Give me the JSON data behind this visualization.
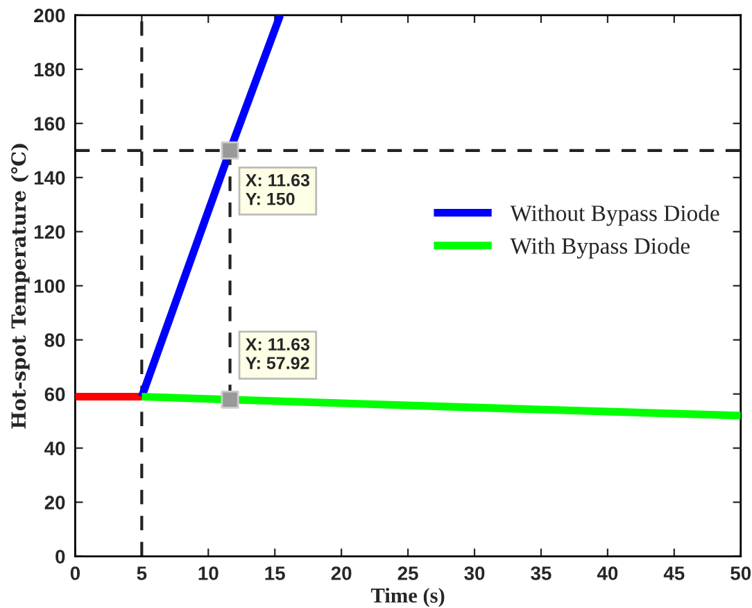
{
  "chart_data": {
    "type": "line",
    "xlabel": "Time (s)",
    "ylabel": "Hot-spot Temperature (℃)",
    "xlim": [
      0,
      50
    ],
    "ylim": [
      0,
      200
    ],
    "xticks": [
      0,
      5,
      10,
      15,
      20,
      25,
      30,
      35,
      40,
      45,
      50
    ],
    "yticks": [
      0,
      20,
      40,
      60,
      80,
      100,
      120,
      140,
      160,
      180,
      200
    ],
    "grid": false,
    "legend": "right",
    "series": [
      {
        "color": "#ff0000",
        "x": [
          0,
          5
        ],
        "values": [
          59,
          59
        ]
      },
      {
        "name": "Without Bypass Diode",
        "color": "#0000ff",
        "x": [
          5,
          11.63,
          15.4
        ],
        "values": [
          59,
          150,
          200
        ]
      },
      {
        "name": "With Bypass Diode",
        "color": "#00ff00",
        "x": [
          5,
          11.63,
          30,
          50
        ],
        "values": [
          59,
          57.92,
          55,
          52
        ]
      },
      {
        "type": "line",
        "color": "#222222",
        "line_style": "dashed",
        "x": [
          11.63,
          11.63
        ],
        "values": [
          150,
          57.92
        ]
      },
      {
        "type": "scatter",
        "color": "#999999",
        "marker": "square",
        "x": [
          11.63,
          11.63
        ],
        "values": [
          150,
          57.92
        ]
      }
    ],
    "ref_lines": [
      {
        "axis": "x",
        "value": 5,
        "color": "#222222",
        "line_style": "dashed"
      },
      {
        "axis": "y",
        "value": 150,
        "color": "#222222",
        "line_style": "dashed"
      }
    ],
    "annotations": [
      {
        "text": "X: 11.63\nY: 150",
        "x": 11.63,
        "y": 150
      },
      {
        "text": "X: 11.63\nY: 57.92",
        "x": 11.63,
        "y": 57.92
      }
    ]
  }
}
